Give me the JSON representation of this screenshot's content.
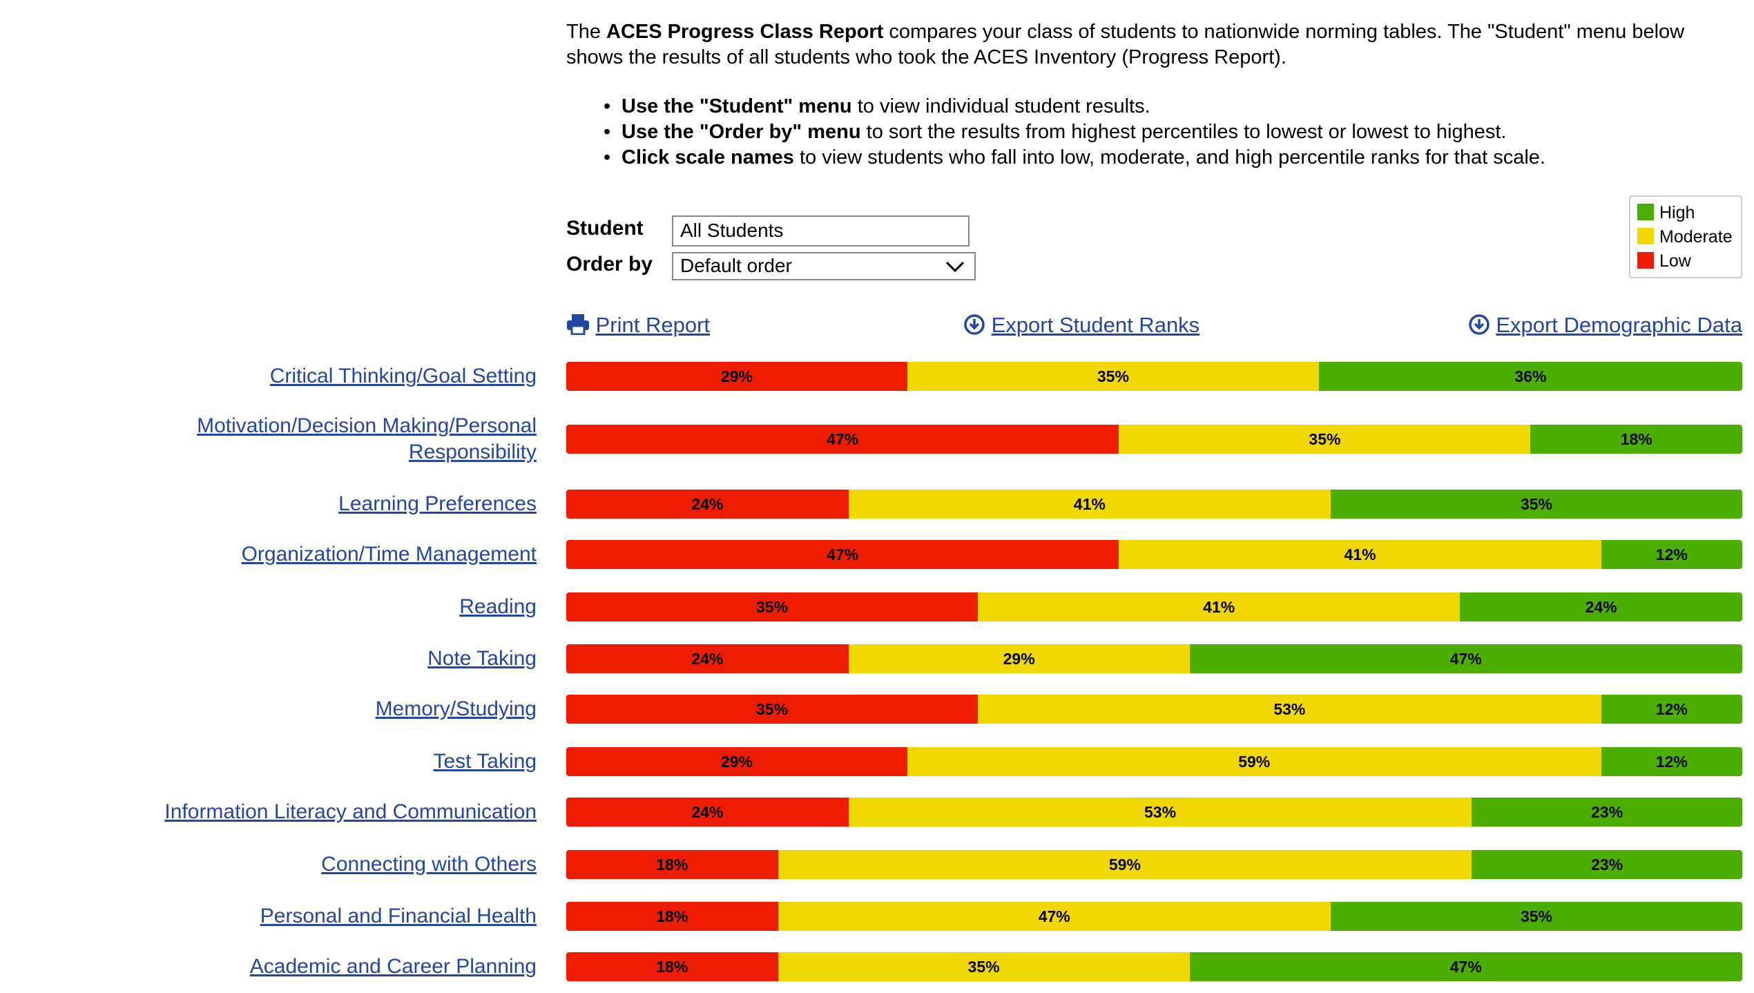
{
  "intro": {
    "lead": [
      "The ",
      "ACES Progress Class Report",
      " compares your class of students to nationwide norming tables. The \"Student\" menu below shows the results of all students who took the ACES Inventory (Progress Report)."
    ],
    "bullets": [
      {
        "bold": "Use the \"Student\" menu",
        "text": " to view individual student results."
      },
      {
        "bold": "Use the \"Order by\" menu",
        "text": " to sort the results from highest percentiles to lowest or lowest to highest."
      },
      {
        "bold": "Click scale names",
        "text": " to view students who fall into low, moderate, and high percentile ranks for that scale."
      }
    ]
  },
  "controls": {
    "student_label": "Student",
    "student_value": "All Students",
    "order_label": "Order by",
    "order_value": "Default order"
  },
  "links": [
    "Print Report",
    "Export Student Ranks",
    "Export Demographic Data"
  ],
  "chart_data": {
    "type": "stacked-bar-horizontal",
    "legend": "top-right",
    "categories": [
      "Critical Thinking/Goal Setting",
      "Motivation/Decision Making/Personal Responsibility",
      "Learning Preferences",
      "Organization/Time Management",
      "Reading",
      "Note Taking",
      "Memory/Studying",
      "Test Taking",
      "Information Literacy and Communication",
      "Connecting with Others",
      "Personal and Financial Health",
      "Academic and Career Planning"
    ],
    "series": [
      {
        "name": "Low",
        "color": "#ee1c00",
        "values": [
          29,
          47,
          24,
          47,
          35,
          24,
          35,
          29,
          24,
          18,
          18,
          18
        ],
        "value_labels": [
          "29%",
          "47%",
          "24%",
          "47%",
          "35%",
          "24%",
          "35%",
          "29%",
          "24%",
          "18%",
          "18%",
          "18%"
        ]
      },
      {
        "name": "Moderate",
        "color": "#f0d800",
        "values": [
          35,
          35,
          41,
          41,
          41,
          29,
          53,
          59,
          53,
          59,
          47,
          35
        ],
        "value_labels": [
          "35%",
          "35%",
          "41%",
          "41%",
          "41%",
          "29%",
          "53%",
          "59%",
          "53%",
          "59%",
          "47%",
          "35%"
        ]
      },
      {
        "name": "High",
        "color": "#4caf00",
        "values": [
          36,
          18,
          35,
          12,
          24,
          47,
          12,
          12,
          23,
          23,
          35,
          47
        ],
        "value_labels": [
          "36%",
          "18%",
          "35%",
          "12%",
          "24%",
          "47%",
          "12%",
          "12%",
          "23%",
          "23%",
          "35%",
          "47%"
        ]
      }
    ]
  }
}
